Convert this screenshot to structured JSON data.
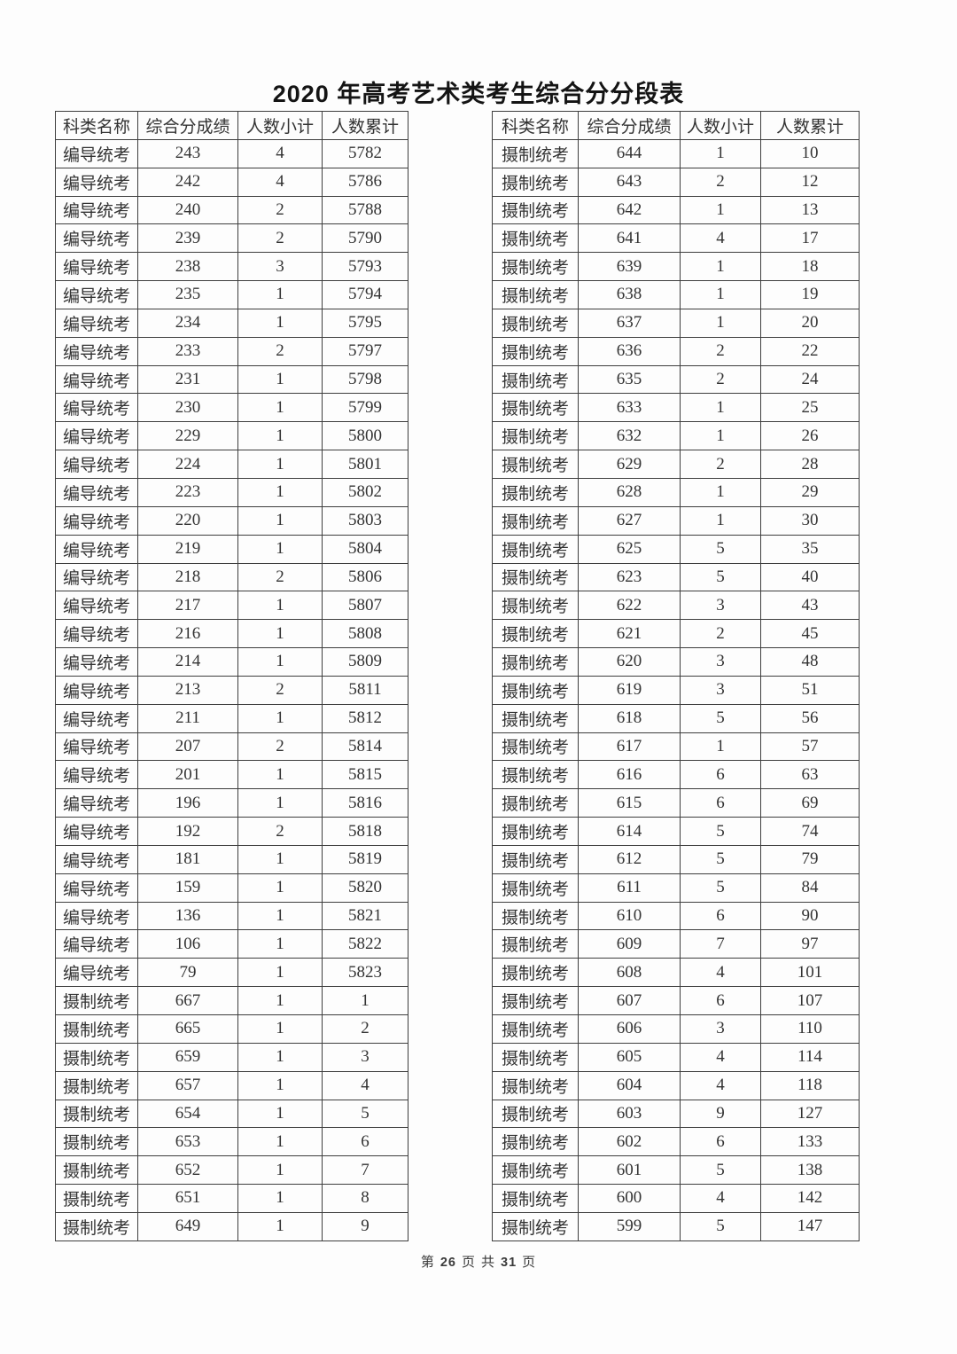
{
  "page": {
    "title": "2020 年高考艺术类考生综合分分段表"
  },
  "footer": {
    "word_di": "第",
    "page_number": "26",
    "word_ye1": "页",
    "word_gong": "共",
    "total_pages": "31",
    "word_ye2": "页"
  },
  "colors": {
    "background": "#fdfdfd",
    "border": "#3e3e3e",
    "text": "#333333",
    "title": "#141414"
  },
  "tables": [
    {
      "headers": [
        "科类名称",
        "综合分成绩",
        "人数小计",
        "人数累计"
      ],
      "rows": [
        [
          "编导统考",
          "243",
          "4",
          "5782"
        ],
        [
          "编导统考",
          "242",
          "4",
          "5786"
        ],
        [
          "编导统考",
          "240",
          "2",
          "5788"
        ],
        [
          "编导统考",
          "239",
          "2",
          "5790"
        ],
        [
          "编导统考",
          "238",
          "3",
          "5793"
        ],
        [
          "编导统考",
          "235",
          "1",
          "5794"
        ],
        [
          "编导统考",
          "234",
          "1",
          "5795"
        ],
        [
          "编导统考",
          "233",
          "2",
          "5797"
        ],
        [
          "编导统考",
          "231",
          "1",
          "5798"
        ],
        [
          "编导统考",
          "230",
          "1",
          "5799"
        ],
        [
          "编导统考",
          "229",
          "1",
          "5800"
        ],
        [
          "编导统考",
          "224",
          "1",
          "5801"
        ],
        [
          "编导统考",
          "223",
          "1",
          "5802"
        ],
        [
          "编导统考",
          "220",
          "1",
          "5803"
        ],
        [
          "编导统考",
          "219",
          "1",
          "5804"
        ],
        [
          "编导统考",
          "218",
          "2",
          "5806"
        ],
        [
          "编导统考",
          "217",
          "1",
          "5807"
        ],
        [
          "编导统考",
          "216",
          "1",
          "5808"
        ],
        [
          "编导统考",
          "214",
          "1",
          "5809"
        ],
        [
          "编导统考",
          "213",
          "2",
          "5811"
        ],
        [
          "编导统考",
          "211",
          "1",
          "5812"
        ],
        [
          "编导统考",
          "207",
          "2",
          "5814"
        ],
        [
          "编导统考",
          "201",
          "1",
          "5815"
        ],
        [
          "编导统考",
          "196",
          "1",
          "5816"
        ],
        [
          "编导统考",
          "192",
          "2",
          "5818"
        ],
        [
          "编导统考",
          "181",
          "1",
          "5819"
        ],
        [
          "编导统考",
          "159",
          "1",
          "5820"
        ],
        [
          "编导统考",
          "136",
          "1",
          "5821"
        ],
        [
          "编导统考",
          "106",
          "1",
          "5822"
        ],
        [
          "编导统考",
          "79",
          "1",
          "5823"
        ],
        [
          "摄制统考",
          "667",
          "1",
          "1"
        ],
        [
          "摄制统考",
          "665",
          "1",
          "2"
        ],
        [
          "摄制统考",
          "659",
          "1",
          "3"
        ],
        [
          "摄制统考",
          "657",
          "1",
          "4"
        ],
        [
          "摄制统考",
          "654",
          "1",
          "5"
        ],
        [
          "摄制统考",
          "653",
          "1",
          "6"
        ],
        [
          "摄制统考",
          "652",
          "1",
          "7"
        ],
        [
          "摄制统考",
          "651",
          "1",
          "8"
        ],
        [
          "摄制统考",
          "649",
          "1",
          "9"
        ]
      ]
    },
    {
      "headers": [
        "科类名称",
        "综合分成绩",
        "人数小计",
        "人数累计"
      ],
      "rows": [
        [
          "摄制统考",
          "644",
          "1",
          "10"
        ],
        [
          "摄制统考",
          "643",
          "2",
          "12"
        ],
        [
          "摄制统考",
          "642",
          "1",
          "13"
        ],
        [
          "摄制统考",
          "641",
          "4",
          "17"
        ],
        [
          "摄制统考",
          "639",
          "1",
          "18"
        ],
        [
          "摄制统考",
          "638",
          "1",
          "19"
        ],
        [
          "摄制统考",
          "637",
          "1",
          "20"
        ],
        [
          "摄制统考",
          "636",
          "2",
          "22"
        ],
        [
          "摄制统考",
          "635",
          "2",
          "24"
        ],
        [
          "摄制统考",
          "633",
          "1",
          "25"
        ],
        [
          "摄制统考",
          "632",
          "1",
          "26"
        ],
        [
          "摄制统考",
          "629",
          "2",
          "28"
        ],
        [
          "摄制统考",
          "628",
          "1",
          "29"
        ],
        [
          "摄制统考",
          "627",
          "1",
          "30"
        ],
        [
          "摄制统考",
          "625",
          "5",
          "35"
        ],
        [
          "摄制统考",
          "623",
          "5",
          "40"
        ],
        [
          "摄制统考",
          "622",
          "3",
          "43"
        ],
        [
          "摄制统考",
          "621",
          "2",
          "45"
        ],
        [
          "摄制统考",
          "620",
          "3",
          "48"
        ],
        [
          "摄制统考",
          "619",
          "3",
          "51"
        ],
        [
          "摄制统考",
          "618",
          "5",
          "56"
        ],
        [
          "摄制统考",
          "617",
          "1",
          "57"
        ],
        [
          "摄制统考",
          "616",
          "6",
          "63"
        ],
        [
          "摄制统考",
          "615",
          "6",
          "69"
        ],
        [
          "摄制统考",
          "614",
          "5",
          "74"
        ],
        [
          "摄制统考",
          "612",
          "5",
          "79"
        ],
        [
          "摄制统考",
          "611",
          "5",
          "84"
        ],
        [
          "摄制统考",
          "610",
          "6",
          "90"
        ],
        [
          "摄制统考",
          "609",
          "7",
          "97"
        ],
        [
          "摄制统考",
          "608",
          "4",
          "101"
        ],
        [
          "摄制统考",
          "607",
          "6",
          "107"
        ],
        [
          "摄制统考",
          "606",
          "3",
          "110"
        ],
        [
          "摄制统考",
          "605",
          "4",
          "114"
        ],
        [
          "摄制统考",
          "604",
          "4",
          "118"
        ],
        [
          "摄制统考",
          "603",
          "9",
          "127"
        ],
        [
          "摄制统考",
          "602",
          "6",
          "133"
        ],
        [
          "摄制统考",
          "601",
          "5",
          "138"
        ],
        [
          "摄制统考",
          "600",
          "4",
          "142"
        ],
        [
          "摄制统考",
          "599",
          "5",
          "147"
        ]
      ]
    }
  ]
}
